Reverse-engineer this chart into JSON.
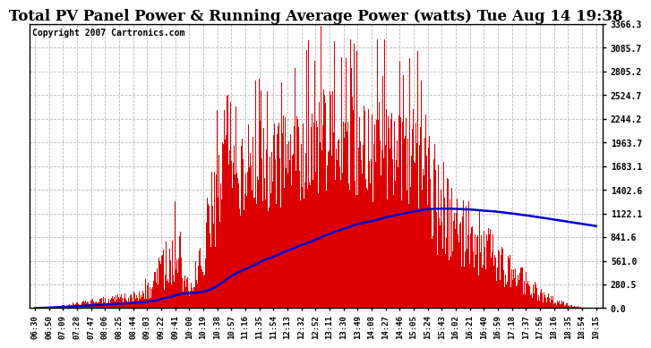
{
  "title": "Total PV Panel Power & Running Average Power (watts) Tue Aug 14 19:38",
  "copyright": "Copyright 2007 Cartronics.com",
  "y_max": 3366.3,
  "y_ticks": [
    0.0,
    280.5,
    561.0,
    841.6,
    1122.1,
    1402.6,
    1683.1,
    1963.7,
    2244.2,
    2524.7,
    2805.2,
    3085.7,
    3366.3
  ],
  "x_labels": [
    "06:30",
    "06:50",
    "07:09",
    "07:28",
    "07:47",
    "08:06",
    "08:25",
    "08:44",
    "09:03",
    "09:22",
    "09:41",
    "10:00",
    "10:19",
    "10:38",
    "10:57",
    "11:16",
    "11:35",
    "11:54",
    "12:13",
    "12:32",
    "12:52",
    "13:11",
    "13:30",
    "13:49",
    "14:08",
    "14:27",
    "14:46",
    "15:05",
    "15:24",
    "15:43",
    "16:02",
    "16:21",
    "16:40",
    "16:59",
    "17:18",
    "17:37",
    "17:56",
    "18:16",
    "18:35",
    "18:54",
    "19:15"
  ],
  "bg_color": "#ffffff",
  "bar_color": "#dd0000",
  "line_color": "#0000cc",
  "grid_color": "#aaaaaa",
  "title_font_size": 12,
  "copyright_font_size": 7
}
